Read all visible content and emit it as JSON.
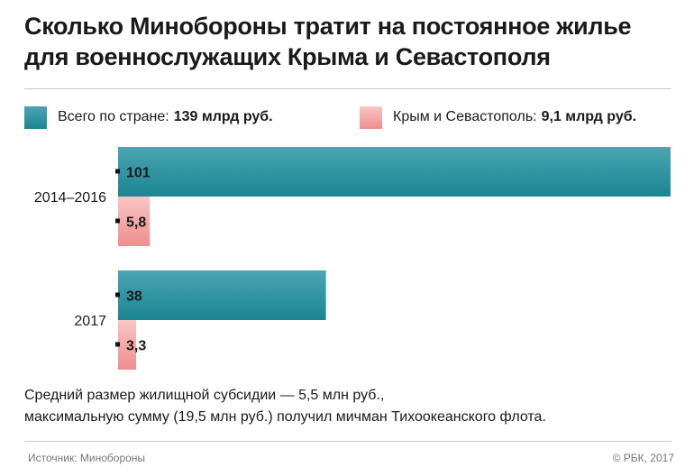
{
  "header": {
    "title_line1": "Сколько Минобороны тратит на постоянное жилье",
    "title_line2": "для военнослужащих Крыма и Севастополя"
  },
  "legend": [
    {
      "label": "Всего по стране:",
      "value": "139 млрд руб.",
      "color": "#1a8592"
    },
    {
      "label": "Крым и Севастополь:",
      "value": "9,1 млрд руб.",
      "color": "#ef8d8e"
    }
  ],
  "chart_data": {
    "type": "bar",
    "orientation": "horizontal",
    "categories": [
      "2014–2016",
      "2017"
    ],
    "series": [
      {
        "name": "Всего по стране",
        "values": [
          101,
          38
        ],
        "labels": [
          "101",
          "38"
        ],
        "color": "#1a8592"
      },
      {
        "name": "Крым и Севастополь",
        "values": [
          5.8,
          3.3
        ],
        "labels": [
          "5,8",
          "3,3"
        ],
        "color": "#ef8d8e"
      }
    ],
    "xlim": [
      0,
      101
    ],
    "grid": false,
    "legend_position": "top"
  },
  "footnote": {
    "line1": "Средний размер жилищной субсидии — 5,5 млн руб.,",
    "line2": "максимальную сумму (19,5 млн руб.) получил мичман Тихоокеанского флота."
  },
  "footer": {
    "source": "Источник: Минобороны",
    "credit": "© РБК, 2017"
  }
}
